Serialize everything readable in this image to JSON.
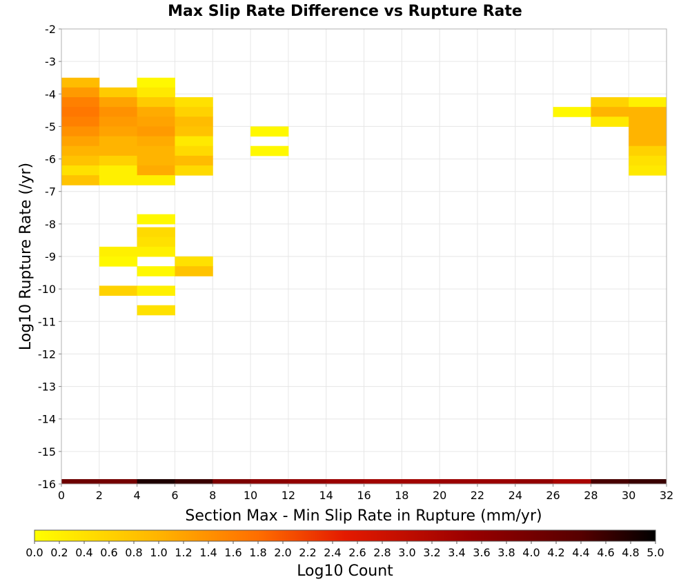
{
  "chart_data": {
    "type": "heatmap",
    "title": "Max Slip Rate Difference vs Rupture Rate",
    "xlabel": "Section Max - Min Slip Rate in Rupture (mm/yr)",
    "ylabel": "Log10 Rupture Rate (/yr)",
    "xlim": [
      0,
      32
    ],
    "ylim": [
      -16,
      -2
    ],
    "x_ticks": [
      "0",
      "2",
      "4",
      "6",
      "8",
      "10",
      "12",
      "14",
      "16",
      "18",
      "20",
      "22",
      "24",
      "26",
      "28",
      "30",
      "32"
    ],
    "y_ticks": [
      "-2",
      "-3",
      "-4",
      "-5",
      "-6",
      "-7",
      "-8",
      "-9",
      "-10",
      "-11",
      "-12",
      "-13",
      "-14",
      "-15",
      "-16"
    ],
    "grid": true,
    "cell_width": 2,
    "cell_height": 0.3,
    "colorbar": {
      "label": "Log10 Count",
      "min": 0.0,
      "max": 5.0,
      "ticks": [
        "0.0",
        "0.2",
        "0.4",
        "0.6",
        "0.8",
        "1.0",
        "1.2",
        "1.4",
        "1.6",
        "1.8",
        "2.0",
        "2.2",
        "2.4",
        "2.6",
        "2.8",
        "3.0",
        "3.2",
        "3.4",
        "3.6",
        "3.8",
        "4.0",
        "4.2",
        "4.4",
        "4.6",
        "4.8",
        "5.0"
      ],
      "stops": [
        {
          "v": 0.0,
          "c": "#ffff00"
        },
        {
          "v": 1.0,
          "c": "#ffb400"
        },
        {
          "v": 1.8,
          "c": "#ff6e00"
        },
        {
          "v": 2.5,
          "c": "#e41a00"
        },
        {
          "v": 3.5,
          "c": "#9a0000"
        },
        {
          "v": 4.4,
          "c": "#560000"
        },
        {
          "v": 5.0,
          "c": "#000000"
        }
      ]
    },
    "bottom_row": {
      "y": -16,
      "values": [
        4.1,
        4.0,
        4.8,
        4.6,
        3.9,
        3.7,
        3.6,
        3.5,
        3.4,
        3.4,
        3.5,
        3.5,
        3.6,
        3.3,
        4.5,
        4.6
      ]
    },
    "cells": [
      {
        "x": 0,
        "y": -3.5,
        "v": 0.9
      },
      {
        "x": 0,
        "y": -3.8,
        "v": 1.3
      },
      {
        "x": 0,
        "y": -4.1,
        "v": 1.6
      },
      {
        "x": 0,
        "y": -4.4,
        "v": 1.7
      },
      {
        "x": 0,
        "y": -4.7,
        "v": 1.6
      },
      {
        "x": 0,
        "y": -5.0,
        "v": 1.4
      },
      {
        "x": 0,
        "y": -5.3,
        "v": 1.2
      },
      {
        "x": 0,
        "y": -5.6,
        "v": 1.0
      },
      {
        "x": 0,
        "y": -5.9,
        "v": 0.8
      },
      {
        "x": 0,
        "y": -6.2,
        "v": 0.4
      },
      {
        "x": 0,
        "y": -6.5,
        "v": 0.8
      },
      {
        "x": 2,
        "y": -3.8,
        "v": 0.7
      },
      {
        "x": 2,
        "y": -4.1,
        "v": 1.2
      },
      {
        "x": 2,
        "y": -4.4,
        "v": 1.4
      },
      {
        "x": 2,
        "y": -4.7,
        "v": 1.3
      },
      {
        "x": 2,
        "y": -5.0,
        "v": 1.2
      },
      {
        "x": 2,
        "y": -5.3,
        "v": 1.0
      },
      {
        "x": 2,
        "y": -5.6,
        "v": 1.0
      },
      {
        "x": 2,
        "y": -5.9,
        "v": 0.6
      },
      {
        "x": 2,
        "y": -6.2,
        "v": 0.2
      },
      {
        "x": 2,
        "y": -6.5,
        "v": 0.2
      },
      {
        "x": 2,
        "y": -8.7,
        "v": 0.2
      },
      {
        "x": 2,
        "y": -9.0,
        "v": 0.1
      },
      {
        "x": 2,
        "y": -9.9,
        "v": 0.6
      },
      {
        "x": 4,
        "y": -3.5,
        "v": 0.1
      },
      {
        "x": 4,
        "y": -3.8,
        "v": 0.3
      },
      {
        "x": 4,
        "y": -4.1,
        "v": 0.7
      },
      {
        "x": 4,
        "y": -4.4,
        "v": 1.1
      },
      {
        "x": 4,
        "y": -4.7,
        "v": 1.2
      },
      {
        "x": 4,
        "y": -5.0,
        "v": 1.3
      },
      {
        "x": 4,
        "y": -5.3,
        "v": 1.1
      },
      {
        "x": 4,
        "y": -5.6,
        "v": 1.0
      },
      {
        "x": 4,
        "y": -5.9,
        "v": 1.0
      },
      {
        "x": 4,
        "y": -6.2,
        "v": 1.1
      },
      {
        "x": 4,
        "y": -6.5,
        "v": 0.2
      },
      {
        "x": 4,
        "y": -7.7,
        "v": 0.1
      },
      {
        "x": 4,
        "y": -8.1,
        "v": 0.5
      },
      {
        "x": 4,
        "y": -8.4,
        "v": 0.4
      },
      {
        "x": 4,
        "y": -8.7,
        "v": 0.2
      },
      {
        "x": 4,
        "y": -9.3,
        "v": 0.1
      },
      {
        "x": 4,
        "y": -9.9,
        "v": 0.2
      },
      {
        "x": 4,
        "y": -10.5,
        "v": 0.4
      },
      {
        "x": 6,
        "y": -4.1,
        "v": 0.4
      },
      {
        "x": 6,
        "y": -4.4,
        "v": 0.6
      },
      {
        "x": 6,
        "y": -4.7,
        "v": 0.9
      },
      {
        "x": 6,
        "y": -5.0,
        "v": 0.8
      },
      {
        "x": 6,
        "y": -5.3,
        "v": 0.3
      },
      {
        "x": 6,
        "y": -5.6,
        "v": 0.5
      },
      {
        "x": 6,
        "y": -5.9,
        "v": 0.9
      },
      {
        "x": 6,
        "y": -6.2,
        "v": 0.5
      },
      {
        "x": 6,
        "y": -9.0,
        "v": 0.4
      },
      {
        "x": 6,
        "y": -9.3,
        "v": 0.8
      },
      {
        "x": 10,
        "y": -5.0,
        "v": 0.1
      },
      {
        "x": 10,
        "y": -5.6,
        "v": 0.1
      },
      {
        "x": 26,
        "y": -4.4,
        "v": 0.1
      },
      {
        "x": 28,
        "y": -4.1,
        "v": 0.6
      },
      {
        "x": 28,
        "y": -4.4,
        "v": 1.0
      },
      {
        "x": 28,
        "y": -4.7,
        "v": 0.3
      },
      {
        "x": 30,
        "y": -4.1,
        "v": 0.2
      },
      {
        "x": 30,
        "y": -4.4,
        "v": 1.0
      },
      {
        "x": 30,
        "y": -4.7,
        "v": 1.0
      },
      {
        "x": 30,
        "y": -5.0,
        "v": 1.0
      },
      {
        "x": 30,
        "y": -5.3,
        "v": 1.0
      },
      {
        "x": 30,
        "y": -5.6,
        "v": 0.6
      },
      {
        "x": 30,
        "y": -5.9,
        "v": 0.4
      },
      {
        "x": 30,
        "y": -6.2,
        "v": 0.3
      }
    ]
  }
}
